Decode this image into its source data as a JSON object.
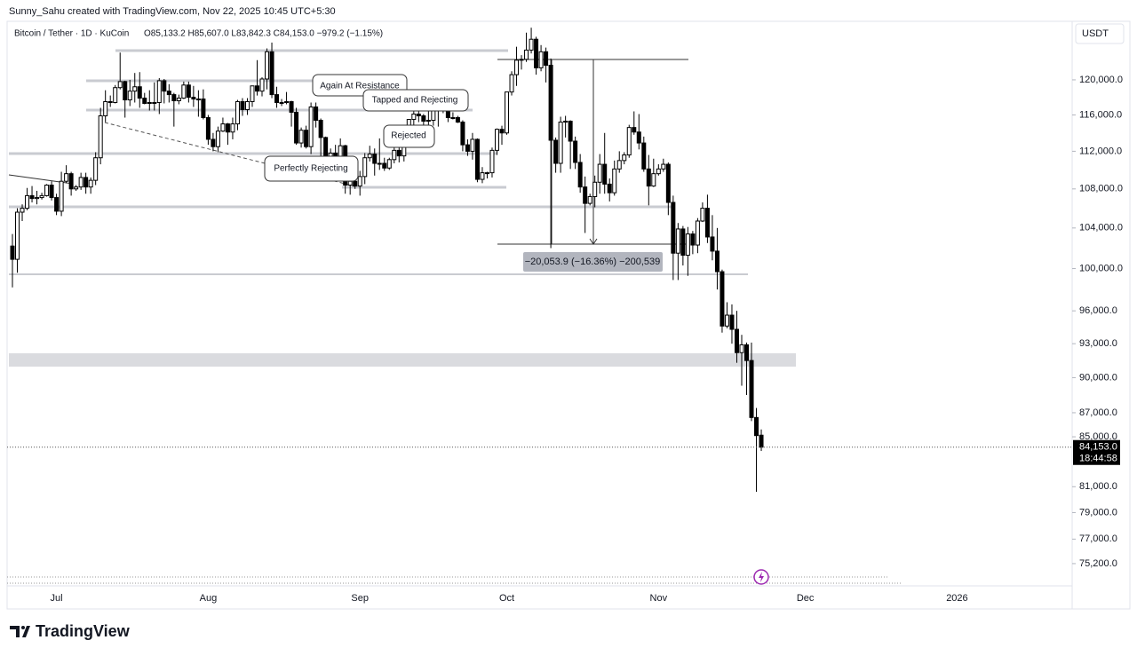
{
  "chart_data": {
    "type": "candlestick",
    "header": "Sunny_Sahu created with TradingView.com, Nov 22, 2025 10:45 UTC+5:30",
    "symbol": "Bitcoin / Tether · 1D · KuCoin",
    "ohlc_text": "O85,133.2 H85,607.0 L83,842.3 C84,153.0 −979.2 (−1.15%)",
    "currency": "USDT",
    "last_price_label": "84,153.0",
    "countdown": "18:44:58",
    "annotations": [
      "Again At Resistance",
      "Tapped and Rejecting",
      "Rejected",
      "Perfectly Rejecting"
    ],
    "measure_label": "−20,053.9 (−16.36%) −200,539",
    "brand": "TradingView",
    "yscale": "log",
    "up_color": "#ffffff",
    "down_color": "#000000",
    "ylim": [
      73600,
      127200
    ],
    "yticks": [
      {
        "value": 120000,
        "label": "120,000.0"
      },
      {
        "value": 116000,
        "label": "116,000.0"
      },
      {
        "value": 112000,
        "label": "112,000.0"
      },
      {
        "value": 108000,
        "label": "108,000.0"
      },
      {
        "value": 104000,
        "label": "104,000.0"
      },
      {
        "value": 100000,
        "label": "100,000.0"
      },
      {
        "value": 96000,
        "label": "96,000.0"
      },
      {
        "value": 93000,
        "label": "93,000.0"
      },
      {
        "value": 90000,
        "label": "90,000.0"
      },
      {
        "value": 87000,
        "label": "87,000.0"
      },
      {
        "value": 85000,
        "label": "85,000.0"
      },
      {
        "value": 81000,
        "label": "81,000.0"
      },
      {
        "value": 79000,
        "label": "79,000.0"
      },
      {
        "value": 77000,
        "label": "77,000.0"
      },
      {
        "value": 75200,
        "label": "75,200.0"
      }
    ],
    "categories": [
      null,
      null,
      null,
      null,
      null,
      null,
      null,
      null,
      null,
      "Jul",
      null,
      null,
      null,
      null,
      null,
      null,
      null,
      null,
      null,
      null,
      null,
      null,
      null,
      null,
      null,
      null,
      null,
      null,
      null,
      null,
      null,
      null,
      null,
      null,
      null,
      null,
      null,
      null,
      null,
      null,
      "Aug",
      null,
      null,
      null,
      null,
      null,
      null,
      null,
      null,
      null,
      null,
      null,
      null,
      null,
      null,
      null,
      null,
      null,
      null,
      null,
      null,
      null,
      null,
      null,
      null,
      null,
      null,
      null,
      null,
      null,
      null,
      "Sep",
      null,
      null,
      null,
      null,
      null,
      null,
      null,
      null,
      null,
      null,
      null,
      null,
      null,
      null,
      null,
      null,
      null,
      null,
      null,
      null,
      null,
      null,
      null,
      null,
      null,
      null,
      null,
      null,
      null,
      "Oct",
      null,
      null,
      null,
      null,
      null,
      null,
      null,
      null,
      null,
      null,
      null,
      null,
      null,
      null,
      null,
      null,
      null,
      null,
      null,
      null,
      null,
      null,
      null,
      null,
      null,
      null,
      null,
      null,
      null,
      null,
      "Nov",
      null,
      null,
      null,
      null,
      null,
      null,
      null,
      null,
      null,
      null,
      null,
      null,
      null,
      null,
      null,
      null,
      null,
      null,
      null,
      null,
      null,
      null,
      null,
      null,
      null,
      null,
      null,
      null,
      null,
      "Dec",
      null,
      null,
      null,
      null,
      null,
      null,
      null,
      null,
      null,
      null,
      null,
      null,
      null,
      null,
      null,
      null,
      null,
      null,
      null,
      null,
      null,
      null,
      null,
      null,
      null,
      null,
      null,
      null,
      null,
      null,
      "2026"
    ],
    "open": [
      102200,
      100900,
      105600,
      106000,
      107300,
      107000,
      107100,
      107300,
      108400,
      107100,
      105700,
      108800,
      109600,
      108000,
      108200,
      109200,
      108200,
      108900,
      111300,
      115900,
      117500,
      117400,
      119100,
      119800,
      117700,
      118700,
      119200,
      117900,
      117300,
      117400,
      117400,
      119900,
      118700,
      118300,
      117600,
      117900,
      119400,
      118000,
      117800,
      117800,
      115700,
      113300,
      112500,
      114200,
      115000,
      114100,
      115000,
      117500,
      116600,
      117500,
      119300,
      118700,
      120100,
      123300,
      118300,
      117400,
      117400,
      117500,
      116300,
      112900,
      114300,
      112500,
      116900,
      115400,
      113500,
      110100,
      111800,
      111300,
      112600,
      108400,
      108800,
      108300,
      109300,
      111300,
      111700,
      110700,
      110700,
      110200,
      111100,
      112100,
      111500,
      113900,
      115500,
      116100,
      115900,
      115300,
      115400,
      116800,
      116500,
      117100,
      115700,
      115700,
      115200,
      112700,
      112000,
      113300,
      109000,
      109700,
      109700,
      112100,
      114400,
      114000,
      118600,
      120600,
      122300,
      122400,
      123500,
      124800,
      121400,
      123300,
      121700,
      113200,
      110700,
      115200,
      115300,
      113100,
      110800,
      108200,
      106500,
      107200,
      108700,
      110600,
      108500,
      107600,
      110100,
      111000,
      111600,
      114600,
      114100,
      112900,
      110100,
      108300,
      109600,
      110100,
      110600,
      106600,
      101500,
      103900,
      101300,
      103400,
      102300,
      104700,
      106000,
      103100,
      101700,
      99700,
      94600,
      95600,
      94300,
      92200,
      92900,
      91500,
      86600,
      85133.2,
      null,
      null,
      null,
      null,
      null,
      null,
      null,
      null,
      null,
      null,
      null,
      null,
      null,
      null,
      null,
      null,
      null,
      null,
      null,
      null,
      null,
      null,
      null,
      null,
      null,
      null,
      null,
      null,
      null,
      null,
      null,
      null,
      null,
      null,
      null,
      null,
      null,
      null,
      null,
      null
    ],
    "high": [
      103400,
      106000,
      106400,
      108100,
      108300,
      107800,
      107600,
      108500,
      108800,
      107500,
      109800,
      110500,
      109800,
      108400,
      109700,
      109700,
      109200,
      111900,
      116800,
      118800,
      118200,
      119400,
      123200,
      119900,
      120000,
      120800,
      120900,
      118500,
      118800,
      119700,
      120200,
      120100,
      119500,
      118500,
      118300,
      119800,
      119800,
      119300,
      118800,
      118900,
      116000,
      114000,
      114700,
      115700,
      115100,
      115700,
      117700,
      117900,
      117900,
      119300,
      122300,
      120300,
      123700,
      124400,
      119200,
      117800,
      118600,
      117600,
      116800,
      114600,
      114800,
      117400,
      117400,
      115600,
      113600,
      112300,
      112700,
      113400,
      112700,
      108900,
      109400,
      109900,
      111800,
      112600,
      112300,
      113400,
      111300,
      111300,
      112900,
      113200,
      114300,
      115500,
      116700,
      116400,
      116100,
      116700,
      117000,
      117300,
      117800,
      117400,
      116300,
      115900,
      115400,
      113300,
      114000,
      113400,
      110300,
      109800,
      112400,
      114500,
      114800,
      118600,
      121000,
      123900,
      122900,
      125600,
      126200,
      125100,
      124100,
      123800,
      122500,
      113500,
      115800,
      115900,
      115400,
      113600,
      111700,
      109300,
      107500,
      109400,
      111700,
      114000,
      109100,
      111000,
      112000,
      111900,
      114900,
      116400,
      116100,
      113600,
      111600,
      111200,
      110600,
      111200,
      110800,
      107300,
      104500,
      104200,
      104100,
      103700,
      105000,
      106600,
      107400,
      105300,
      104000,
      99900,
      96800,
      96600,
      96000,
      93800,
      93100,
      93100,
      87400,
      85607,
      null,
      null,
      null,
      null,
      null,
      null,
      null,
      null,
      null,
      null,
      null,
      null,
      null,
      null,
      null,
      null,
      null,
      null,
      null,
      null,
      null,
      null,
      null,
      null,
      null,
      null,
      null,
      null,
      null,
      null,
      null,
      null,
      null,
      null,
      null,
      null,
      null,
      null,
      null,
      null
    ],
    "low": [
      98200,
      99600,
      104700,
      105800,
      106600,
      106400,
      106900,
      107200,
      106800,
      105300,
      105200,
      108600,
      107300,
      107800,
      107900,
      107500,
      107500,
      108400,
      110600,
      115200,
      116900,
      117300,
      118900,
      115700,
      117000,
      117400,
      116800,
      117200,
      116500,
      116500,
      116100,
      117300,
      117400,
      114700,
      117200,
      117800,
      117400,
      116900,
      115800,
      115500,
      112700,
      112000,
      111900,
      114100,
      112700,
      113300,
      114300,
      115900,
      116000,
      116900,
      118200,
      118100,
      118900,
      117900,
      116800,
      117000,
      117200,
      114700,
      112700,
      112400,
      112300,
      111700,
      114600,
      111000,
      109300,
      109000,
      110400,
      110900,
      107500,
      107400,
      108000,
      107300,
      108500,
      110900,
      109400,
      110000,
      109900,
      110000,
      110700,
      110800,
      110900,
      113500,
      114800,
      115200,
      114800,
      114400,
      114800,
      114700,
      116200,
      115200,
      115500,
      115100,
      112000,
      111500,
      111100,
      108700,
      108600,
      109100,
      109200,
      111600,
      112700,
      113800,
      118200,
      119300,
      121200,
      122100,
      123100,
      120600,
      121000,
      119700,
      102000,
      109700,
      109700,
      113500,
      110100,
      110100,
      107600,
      103500,
      106300,
      106100,
      107500,
      107500,
      106700,
      107300,
      109700,
      110600,
      111300,
      113800,
      112200,
      109800,
      106300,
      108200,
      109400,
      109800,
      105300,
      98900,
      98900,
      100300,
      99300,
      101400,
      101500,
      104600,
      102500,
      100800,
      98000,
      94000,
      94400,
      93000,
      91300,
      89300,
      88500,
      86300,
      80600,
      83842.3,
      null,
      null,
      null,
      null,
      null,
      null,
      null,
      null,
      null,
      null,
      null,
      null,
      null,
      null,
      null,
      null,
      null,
      null,
      null,
      null,
      null,
      null,
      null,
      null,
      null,
      null,
      null,
      null,
      null,
      null,
      null,
      null,
      null,
      null,
      null,
      null,
      null,
      null,
      null,
      null
    ],
    "close": [
      100900,
      105600,
      106000,
      107300,
      107000,
      107100,
      107300,
      108400,
      107100,
      105700,
      108800,
      109600,
      108000,
      108200,
      109200,
      108200,
      108900,
      111300,
      115900,
      117500,
      117400,
      119100,
      119800,
      117700,
      118700,
      119200,
      117900,
      117300,
      117400,
      117400,
      119900,
      118700,
      118300,
      117600,
      117900,
      119400,
      118000,
      117800,
      117800,
      115700,
      113300,
      112500,
      114200,
      115000,
      114100,
      115000,
      117500,
      116600,
      117500,
      119300,
      118700,
      120100,
      123300,
      118300,
      117400,
      117400,
      117500,
      116300,
      112900,
      114300,
      112500,
      116900,
      115400,
      113500,
      110100,
      111800,
      111300,
      112600,
      108400,
      108800,
      108300,
      109300,
      111300,
      111700,
      110700,
      110700,
      110200,
      111100,
      112100,
      111500,
      113900,
      115500,
      116100,
      115900,
      115300,
      115400,
      116800,
      116500,
      117100,
      115700,
      115700,
      115200,
      112700,
      112000,
      113300,
      109000,
      109700,
      109700,
      112100,
      114400,
      114000,
      118600,
      120600,
      122300,
      122400,
      123500,
      124800,
      121400,
      123300,
      121700,
      113200,
      110700,
      115200,
      115300,
      113100,
      110800,
      108200,
      106500,
      107200,
      108700,
      110600,
      108500,
      107600,
      110100,
      111000,
      111600,
      114600,
      114100,
      112900,
      110100,
      108300,
      109600,
      110100,
      110600,
      106600,
      101500,
      103900,
      101300,
      103400,
      102300,
      104700,
      106000,
      103100,
      101700,
      99700,
      94600,
      95600,
      94300,
      92200,
      92900,
      91500,
      86600,
      85100,
      84153,
      null,
      null,
      null,
      null,
      null,
      null,
      null,
      null,
      null,
      null,
      null,
      null,
      null,
      null,
      null,
      null,
      null,
      null,
      null,
      null,
      null,
      null,
      null,
      null,
      null,
      null,
      null,
      null,
      null,
      null,
      null,
      null,
      null,
      null,
      null,
      null,
      null,
      null,
      null,
      null
    ]
  }
}
